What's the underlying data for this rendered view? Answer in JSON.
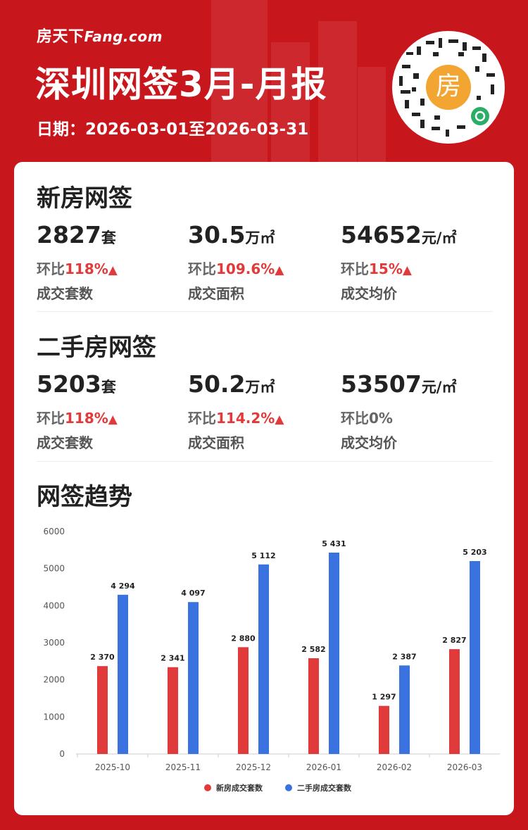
{
  "header": {
    "logo_cn": "房天下",
    "logo_en": "Fang.com",
    "title": "深圳网签3月-月报",
    "date_label": "日期：",
    "date_range": "2026-03-01至2026-03-31",
    "qr_char": "房"
  },
  "new_house": {
    "title": "新房网签",
    "stats": [
      {
        "value": "2827",
        "unit": "套",
        "change_label": "环比",
        "change": "118%",
        "arrow": "▲",
        "label": "成交套数"
      },
      {
        "value": "30.5",
        "unit": "万㎡",
        "change_label": "环比",
        "change": "109.6%",
        "arrow": "▲",
        "label": "成交面积"
      },
      {
        "value": "54652",
        "unit": "元/㎡",
        "change_label": "环比",
        "change": "15%",
        "arrow": "▲",
        "label": "成交均价"
      }
    ]
  },
  "second_house": {
    "title": "二手房网签",
    "stats": [
      {
        "value": "5203",
        "unit": "套",
        "change_label": "环比",
        "change": "118%",
        "arrow": "▲",
        "label": "成交套数"
      },
      {
        "value": "50.2",
        "unit": "万㎡",
        "change_label": "环比",
        "change": "114.2%",
        "arrow": "▲",
        "label": "成交面积"
      },
      {
        "value": "53507",
        "unit": "元/㎡",
        "change_label": "环比",
        "change": "0%",
        "arrow": "",
        "label": "成交均价"
      }
    ]
  },
  "trend": {
    "title": "网签趋势"
  },
  "colors": {
    "new": "#e03a3a",
    "second": "#3a72e0",
    "brand_red": "#c8161d"
  },
  "chart_data": {
    "type": "bar",
    "categories": [
      "2025-10",
      "2025-11",
      "2025-12",
      "2026-01",
      "2026-02",
      "2026-03"
    ],
    "series": [
      {
        "name": "新房成交套数",
        "values": [
          2370,
          2341,
          2880,
          2582,
          1297,
          2827
        ],
        "labels": [
          "2 370",
          "2 341",
          "2 880",
          "2 582",
          "1 297",
          "2 827"
        ]
      },
      {
        "name": "二手房成交套数",
        "values": [
          4294,
          4097,
          5112,
          5431,
          2387,
          5203
        ],
        "labels": [
          "4 294",
          "4 097",
          "5 112",
          "5 431",
          "2 387",
          "5 203"
        ]
      }
    ],
    "ylim": [
      0,
      6000
    ],
    "yticks": [
      0,
      1000,
      2000,
      3000,
      4000,
      5000,
      6000
    ],
    "legend": "bottom",
    "grid": false
  }
}
